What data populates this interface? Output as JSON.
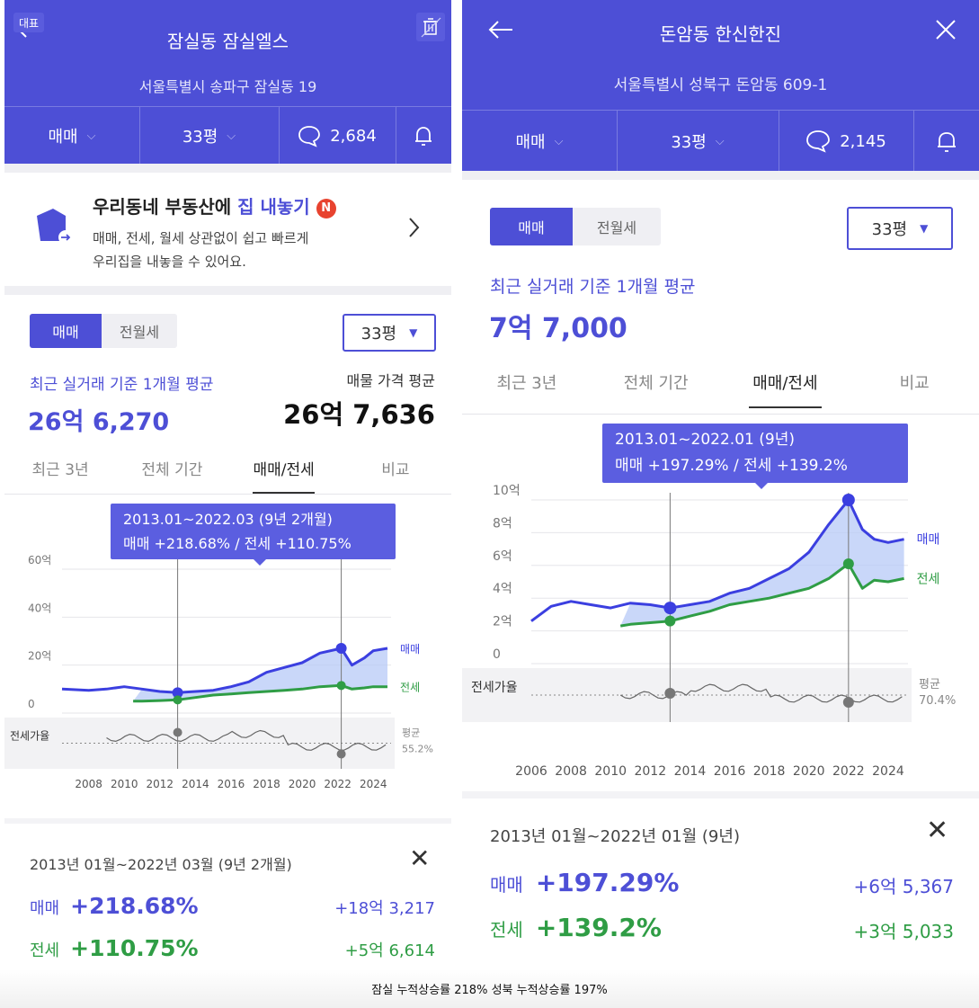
{
  "left": {
    "header": {
      "badge": "대표",
      "back_icon": "arrow-left-icon",
      "trash_icon": "trash-icon",
      "title": "잠실동 잠실엘스",
      "address": "서울특별시 송파구 잠실동 19",
      "trade_type": "매매",
      "size": "33평",
      "comment_count": "2,684"
    },
    "promo": {
      "title_a": "우리동네 부동산에 ",
      "title_b": "집 내놓기",
      "badge": "N",
      "line1": "매매, 전세, 월세 상관없이 쉽고 빠르게",
      "line2": "우리집을 내놓을 수 있어요."
    },
    "seg": [
      "매매",
      "전월세"
    ],
    "size_select": "33평",
    "avg_label": "최근 실거래 기준 1개월 평균",
    "avg_value": "26억 6,270",
    "listing_label": "매물 가격 평균",
    "listing_value": "26억 7,636",
    "tabs": [
      "최근 3년",
      "전체 기간",
      "매매/전세",
      "비교"
    ],
    "tooltip": {
      "line1": "2013.01~2022.03 (9년 2개월)",
      "line2": "매매 +218.68%  /  전세 +110.75%"
    },
    "chart_data": {
      "type": "line",
      "y_ticks": [
        "60억",
        "40억",
        "20억",
        "0"
      ],
      "x_ticks": [
        "2008",
        "2010",
        "2012",
        "2014",
        "2016",
        "2018",
        "2020",
        "2022",
        "2024"
      ],
      "ylim": [
        0,
        60
      ],
      "unit": "억",
      "series": [
        {
          "name": "매매",
          "color": "#3b3fe0",
          "x": [
            2006.5,
            2008,
            2009,
            2010,
            2011,
            2012,
            2013,
            2014,
            2015,
            2016,
            2017,
            2018,
            2019,
            2020,
            2021,
            2022.2,
            2022.8,
            2023.5,
            2024,
            2024.8
          ],
          "values": [
            10,
            9.5,
            10,
            11,
            10,
            9,
            8.5,
            9,
            9.5,
            11,
            13,
            17,
            19,
            21,
            25,
            27,
            20,
            23,
            26,
            27
          ]
        },
        {
          "name": "전세",
          "color": "#2f9d45",
          "x": [
            2010.5,
            2011,
            2012,
            2013,
            2014,
            2015,
            2016,
            2017,
            2018,
            2019,
            2020,
            2021,
            2022.2,
            2022.8,
            2023.5,
            2024,
            2024.8
          ],
          "values": [
            5,
            5,
            5.2,
            5.5,
            6.5,
            7.5,
            8,
            8.5,
            9,
            9.5,
            10,
            11,
            11.5,
            10,
            10.5,
            11,
            11
          ]
        }
      ],
      "ratio_label": "전세가율",
      "ratio_avg_label": "평균",
      "ratio_avg_value": "55.2%"
    },
    "summary": {
      "period": "2013년 01월~2022년 03월 (9년 2개월)",
      "sale_label": "매매",
      "sale_pct": "+218.68%",
      "sale_amt": "+18억 3,217",
      "jeonse_label": "전세",
      "jeonse_pct": "+110.75%",
      "jeonse_amt": "+5억 6,614"
    }
  },
  "right": {
    "header": {
      "back_icon": "arrow-left-icon",
      "close_icon": "close-icon",
      "title": "돈암동 한신한진",
      "address": "서울특별시 성북구 돈암동 609-1",
      "trade_type": "매매",
      "size": "33평",
      "comment_count": "2,145"
    },
    "seg": [
      "매매",
      "전월세"
    ],
    "size_select": "33평",
    "avg_label": "최근 실거래 기준 1개월 평균",
    "avg_value": "7억 7,000",
    "tabs": [
      "최근 3년",
      "전체 기간",
      "매매/전세",
      "비교"
    ],
    "tooltip": {
      "line1": "2013.01~2022.01 (9년)",
      "line2": "매매 +197.29%  /  전세 +139.2%"
    },
    "chart_data": {
      "type": "line",
      "y_ticks": [
        "10억",
        "8억",
        "6억",
        "4억",
        "2억",
        "0"
      ],
      "x_ticks": [
        "2006",
        "2008",
        "2010",
        "2012",
        "2014",
        "2016",
        "2018",
        "2020",
        "2022",
        "2024"
      ],
      "ylim": [
        0,
        10
      ],
      "unit": "억",
      "series": [
        {
          "name": "매매",
          "color": "#3b3fe0",
          "x": [
            2006,
            2007,
            2008,
            2009,
            2010,
            2011,
            2012,
            2013,
            2014,
            2015,
            2016,
            2017,
            2018,
            2019,
            2020,
            2021,
            2022,
            2022.7,
            2023.3,
            2024,
            2024.8
          ],
          "values": [
            2.6,
            3.5,
            3.8,
            3.6,
            3.4,
            3.7,
            3.6,
            3.4,
            3.6,
            3.8,
            4.3,
            4.6,
            5.2,
            5.8,
            6.8,
            8.5,
            10,
            8.2,
            7.6,
            7.4,
            7.6
          ]
        },
        {
          "name": "전세",
          "color": "#2f9d45",
          "x": [
            2010.5,
            2011,
            2012,
            2013,
            2014,
            2015,
            2016,
            2017,
            2018,
            2019,
            2020,
            2021,
            2022,
            2022.7,
            2023.3,
            2024,
            2024.8
          ],
          "values": [
            2.3,
            2.4,
            2.5,
            2.6,
            2.9,
            3.2,
            3.6,
            3.8,
            4.0,
            4.3,
            4.6,
            5.2,
            6.1,
            4.6,
            5.1,
            5.0,
            5.2
          ]
        }
      ],
      "ratio_label": "전세가율",
      "ratio_avg_label": "평균",
      "ratio_avg_value": "70.4%"
    },
    "summary": {
      "period": "2013년 01월~2022년 01월 (9년)",
      "sale_label": "매매",
      "sale_pct": "+197.29%",
      "sale_amt": "+6억 5,367",
      "jeonse_label": "전세",
      "jeonse_pct": "+139.2%",
      "jeonse_amt": "+3억 5,033"
    }
  },
  "caption": "잠실 누적상승률 218% 성북 누적상승률 197%"
}
